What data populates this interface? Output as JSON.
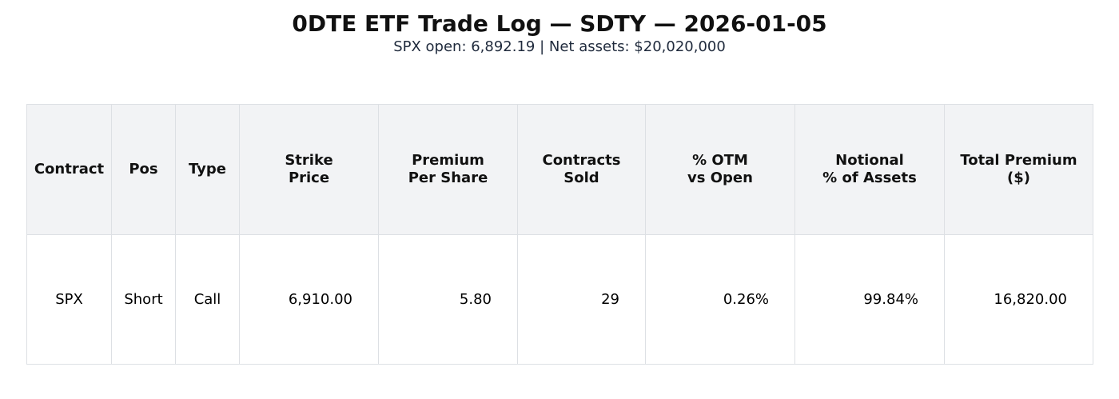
{
  "header": {
    "title": "0DTE ETF Trade Log — SDTY — 2026-01-05",
    "subtitle": "SPX open: 6,892.19 | Net assets: $20,020,000"
  },
  "table": {
    "columns": [
      "Contract",
      "Pos",
      "Type",
      "Strike\nPrice",
      "Premium\nPer Share",
      "Contracts\nSold",
      "% OTM\nvs Open",
      "Notional\n% of Assets",
      "Total Premium\n($)"
    ],
    "rows": [
      [
        "SPX",
        "Short",
        "Call",
        "6,910.00",
        "5.80",
        "29",
        "0.26%",
        "99.84%",
        "16,820.00"
      ]
    ]
  }
}
